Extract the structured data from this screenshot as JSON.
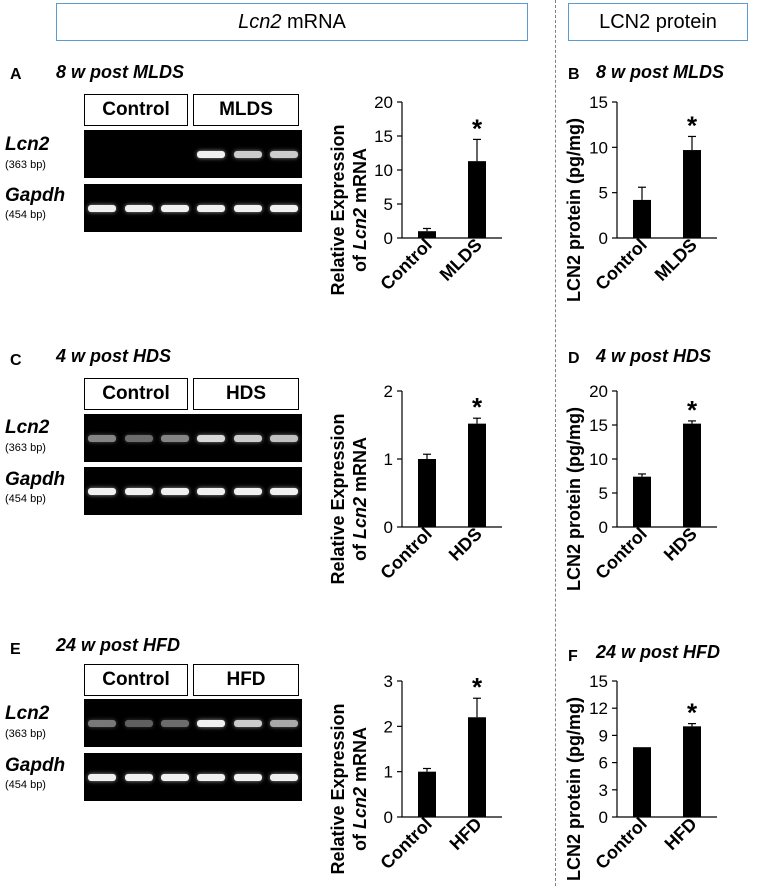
{
  "headers": {
    "left_italic": "Lcn2",
    "left_rest": " mRNA",
    "right": "LCN2 protein"
  },
  "rows": [
    {
      "mrna_letter": "A",
      "protein_letter": "B",
      "title_prefix": "8 w post ",
      "title_model": "MLDS",
      "groups": [
        "Control",
        "MLDS"
      ],
      "gene1": "Lcn2",
      "gene1_bp": "(363 bp)",
      "gene2": "Gapdh",
      "gene2_bp": "(454 bp)"
    },
    {
      "mrna_letter": "C",
      "protein_letter": "D",
      "title_prefix": "4 w post ",
      "title_model": "HDS",
      "groups": [
        "Control",
        "HDS"
      ],
      "gene1": "Lcn2",
      "gene1_bp": "(363 bp)",
      "gene2": "Gapdh",
      "gene2_bp": "(454 bp)"
    },
    {
      "mrna_letter": "E",
      "protein_letter": "F",
      "title_prefix": "24 w post ",
      "title_model": "HFD",
      "groups": [
        "Control",
        "HFD"
      ],
      "gene1": "Lcn2",
      "gene1_bp": "(363 bp)",
      "gene2": "Gapdh",
      "gene2_bp": "(454 bp)"
    }
  ],
  "gel_bands": [
    {
      "lcn2": [
        0,
        0,
        0,
        1.0,
        0.85,
        0.85
      ],
      "gapdh": [
        1,
        1,
        1,
        1,
        1,
        1
      ]
    },
    {
      "lcn2": [
        0.55,
        0.45,
        0.55,
        0.9,
        0.85,
        0.8
      ],
      "gapdh": [
        1,
        1,
        1,
        1,
        1,
        1
      ]
    },
    {
      "lcn2": [
        0.5,
        0.4,
        0.45,
        1.0,
        0.85,
        0.7
      ],
      "gapdh": [
        1,
        1,
        1,
        1,
        1,
        1
      ]
    }
  ],
  "chart_data": [
    {
      "type": "bar",
      "panel": "A",
      "categories": [
        "Control",
        "MLDS"
      ],
      "values": [
        1.0,
        11.3
      ],
      "errors": [
        0.4,
        3.2
      ],
      "significant": [
        false,
        true
      ],
      "sig_mark": "*",
      "ylabel_line1": "Relative Expression",
      "ylabel_line2_pre": "of ",
      "ylabel_line2_italic": "Lcn2",
      "ylabel_line2_post": " mRNA",
      "ylim": [
        0,
        20
      ],
      "yticks": [
        0,
        5,
        10,
        15,
        20
      ]
    },
    {
      "type": "bar",
      "panel": "B",
      "categories": [
        "Control",
        "MLDS"
      ],
      "values": [
        4.2,
        9.7
      ],
      "errors": [
        1.4,
        1.5
      ],
      "significant": [
        false,
        true
      ],
      "sig_mark": "*",
      "ylabel": "LCN2 protein (pg/mg)",
      "ylim": [
        0,
        15
      ],
      "yticks": [
        0,
        5,
        10,
        15
      ]
    },
    {
      "type": "bar",
      "panel": "C",
      "categories": [
        "Control",
        "HDS"
      ],
      "values": [
        1.0,
        1.52
      ],
      "errors": [
        0.07,
        0.08
      ],
      "significant": [
        false,
        true
      ],
      "sig_mark": "*",
      "ylabel_line1": "Relative Expression",
      "ylabel_line2_pre": "of ",
      "ylabel_line2_italic": "Lcn2",
      "ylabel_line2_post": " mRNA",
      "ylim": [
        0,
        2
      ],
      "yticks": [
        0,
        1,
        2
      ]
    },
    {
      "type": "bar",
      "panel": "D",
      "categories": [
        "Control",
        "HDS"
      ],
      "values": [
        7.4,
        15.2
      ],
      "errors": [
        0.4,
        0.4
      ],
      "significant": [
        false,
        true
      ],
      "sig_mark": "*",
      "ylabel": "LCN2 protein (pg/mg)",
      "ylim": [
        0,
        20
      ],
      "yticks": [
        0,
        5,
        10,
        15,
        20
      ]
    },
    {
      "type": "bar",
      "panel": "E",
      "categories": [
        "Control",
        "HFD"
      ],
      "values": [
        1.0,
        2.2
      ],
      "errors": [
        0.07,
        0.42
      ],
      "significant": [
        false,
        true
      ],
      "sig_mark": "*",
      "ylabel_line1": "Relative Expression",
      "ylabel_line2_pre": "of ",
      "ylabel_line2_italic": "Lcn2",
      "ylabel_line2_post": " mRNA",
      "ylim": [
        0,
        3
      ],
      "yticks": [
        0,
        1,
        2,
        3
      ]
    },
    {
      "type": "bar",
      "panel": "F",
      "categories": [
        "Control",
        "HFD"
      ],
      "values": [
        7.7,
        10.0
      ],
      "errors": [
        0.0,
        0.3
      ],
      "significant": [
        false,
        true
      ],
      "sig_mark": "*",
      "ylabel": "LCN2 protein (pg/mg)",
      "ylim": [
        0,
        15
      ],
      "yticks": [
        0,
        3,
        6,
        9,
        12,
        15
      ]
    }
  ]
}
